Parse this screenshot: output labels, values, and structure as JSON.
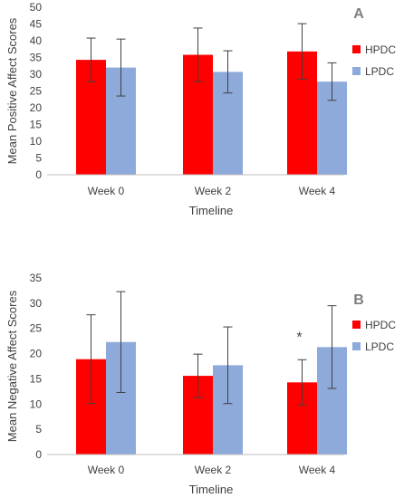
{
  "colors": {
    "HPDC": "#ff0000",
    "LPDC": "#8eaadb",
    "axis": "#bfbfbf",
    "errorbar": "#404040"
  },
  "chart_data": [
    {
      "type": "bar",
      "panel_label": "A",
      "categories": [
        "Week 0",
        "Week 2",
        "Week 4"
      ],
      "series": [
        {
          "name": "HPDC",
          "values": [
            34.3,
            35.8,
            36.8
          ],
          "error": [
            6.5,
            8.0,
            8.3
          ]
        },
        {
          "name": "LPDC",
          "values": [
            32.0,
            30.7,
            27.8
          ],
          "error": [
            8.5,
            6.3,
            5.6
          ]
        }
      ],
      "xlabel": "Timeline",
      "ylabel": "Mean Positive Affect Scores",
      "ylim": [
        0,
        50
      ],
      "yticks": [
        0,
        5,
        10,
        15,
        20,
        25,
        30,
        35,
        40,
        45,
        50
      ],
      "grid": false,
      "legend_position": "right",
      "annotations": []
    },
    {
      "type": "bar",
      "panel_label": "B",
      "categories": [
        "Week 0",
        "Week 2",
        "Week 4"
      ],
      "series": [
        {
          "name": "HPDC",
          "values": [
            18.9,
            15.6,
            14.3
          ],
          "error": [
            8.8,
            4.3,
            4.5
          ]
        },
        {
          "name": "LPDC",
          "values": [
            22.3,
            17.7,
            21.3
          ],
          "error": [
            10.0,
            7.6,
            8.2
          ]
        }
      ],
      "xlabel": "Timeline",
      "ylabel": "Mean Negative Affect Scores",
      "ylim": [
        0,
        35
      ],
      "yticks": [
        0,
        5,
        10,
        15,
        20,
        25,
        30,
        35
      ],
      "grid": false,
      "legend_position": "right",
      "annotations": [
        {
          "text": "*",
          "category": "Week 4",
          "series": "HPDC"
        }
      ]
    }
  ]
}
